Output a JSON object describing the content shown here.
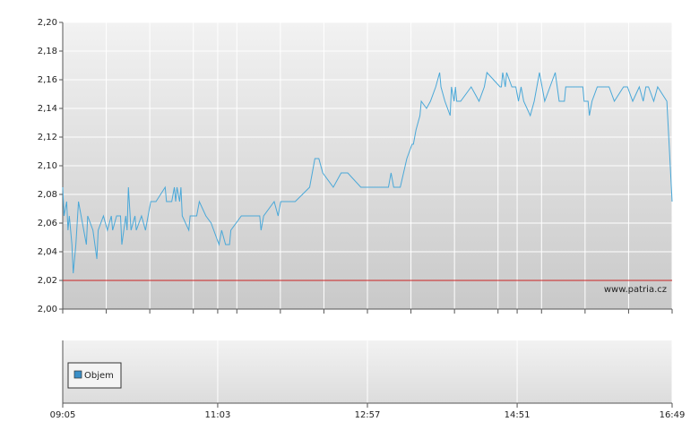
{
  "chart_data": {
    "type": "line",
    "x": [
      545,
      546,
      548,
      549,
      550,
      552,
      553,
      555,
      557,
      561,
      563,
      564,
      568,
      571,
      572,
      576,
      579,
      582,
      583,
      586,
      589,
      590,
      593,
      594,
      595,
      597,
      600,
      601,
      605,
      608,
      612,
      616,
      623,
      624,
      628,
      630,
      631,
      632,
      634,
      635,
      636,
      641,
      642,
      647,
      649,
      654,
      658,
      664,
      666,
      669,
      672,
      673,
      681,
      695,
      696,
      698,
      706,
      709,
      711,
      722,
      733,
      737,
      740,
      743,
      751,
      757,
      762,
      772,
      793,
      795,
      797,
      802,
      807,
      811,
      812,
      814,
      817,
      818,
      822,
      825,
      829,
      832,
      833,
      836,
      840,
      841,
      843,
      844,
      845,
      848,
      856,
      862,
      866,
      868,
      878,
      879,
      880,
      882,
      883,
      887,
      890,
      892,
      894,
      896,
      901,
      904,
      908,
      912,
      916,
      920,
      923,
      927,
      928,
      941,
      942,
      945,
      946,
      948,
      952,
      961,
      965,
      972,
      975,
      979,
      984,
      987,
      989,
      991,
      995,
      998,
      1005,
      1009
    ],
    "values": [
      2.085,
      2.065,
      2.075,
      2.055,
      2.065,
      2.045,
      2.025,
      2.045,
      2.075,
      2.055,
      2.045,
      2.065,
      2.055,
      2.035,
      2.055,
      2.065,
      2.055,
      2.065,
      2.055,
      2.065,
      2.065,
      2.045,
      2.065,
      2.055,
      2.085,
      2.055,
      2.065,
      2.055,
      2.065,
      2.055,
      2.075,
      2.075,
      2.085,
      2.075,
      2.075,
      2.085,
      2.075,
      2.085,
      2.075,
      2.085,
      2.065,
      2.055,
      2.065,
      2.065,
      2.075,
      2.065,
      2.06,
      2.045,
      2.055,
      2.045,
      2.045,
      2.055,
      2.065,
      2.065,
      2.055,
      2.065,
      2.075,
      2.065,
      2.075,
      2.075,
      2.085,
      2.105,
      2.105,
      2.095,
      2.085,
      2.095,
      2.095,
      2.085,
      2.085,
      2.095,
      2.085,
      2.085,
      2.105,
      2.115,
      2.115,
      2.125,
      2.135,
      2.145,
      2.14,
      2.145,
      2.155,
      2.165,
      2.155,
      2.145,
      2.135,
      2.155,
      2.145,
      2.155,
      2.145,
      2.145,
      2.155,
      2.145,
      2.155,
      2.165,
      2.155,
      2.155,
      2.165,
      2.155,
      2.165,
      2.155,
      2.155,
      2.145,
      2.155,
      2.145,
      2.135,
      2.145,
      2.165,
      2.145,
      2.155,
      2.165,
      2.145,
      2.145,
      2.155,
      2.155,
      2.145,
      2.145,
      2.135,
      2.145,
      2.155,
      2.155,
      2.145,
      2.155,
      2.155,
      2.145,
      2.155,
      2.145,
      2.155,
      2.155,
      2.145,
      2.155,
      2.145,
      2.075
    ],
    "color": "#4aa8d8",
    "xlim": [
      545,
      1009
    ],
    "xticks": [
      {
        "value": 545,
        "label": "09:05"
      },
      {
        "value": 663,
        "label": "11:03"
      },
      {
        "value": 777,
        "label": "12:57"
      },
      {
        "value": 891,
        "label": "14:51"
      },
      {
        "value": 1009,
        "label": "16:49"
      }
    ],
    "ylim": [
      2.0,
      2.2
    ],
    "yticks": [
      {
        "value": 2.0,
        "label": "2,00"
      },
      {
        "value": 2.02,
        "label": "2,02"
      },
      {
        "value": 2.04,
        "label": "2,04"
      },
      {
        "value": 2.06,
        "label": "2,06"
      },
      {
        "value": 2.08,
        "label": "2,08"
      },
      {
        "value": 2.1,
        "label": "2,10"
      },
      {
        "value": 2.12,
        "label": "2,12"
      },
      {
        "value": 2.14,
        "label": "2,14"
      },
      {
        "value": 2.16,
        "label": "2,16"
      },
      {
        "value": 2.18,
        "label": "2,18"
      },
      {
        "value": 2.2,
        "label": "2,20"
      }
    ],
    "grid": true,
    "reference_line": {
      "value": 2.02,
      "color": "#cc2222"
    },
    "watermark": "www.patria.cz",
    "volume": {
      "name": "Objem",
      "color": "#3a8fc8"
    }
  }
}
